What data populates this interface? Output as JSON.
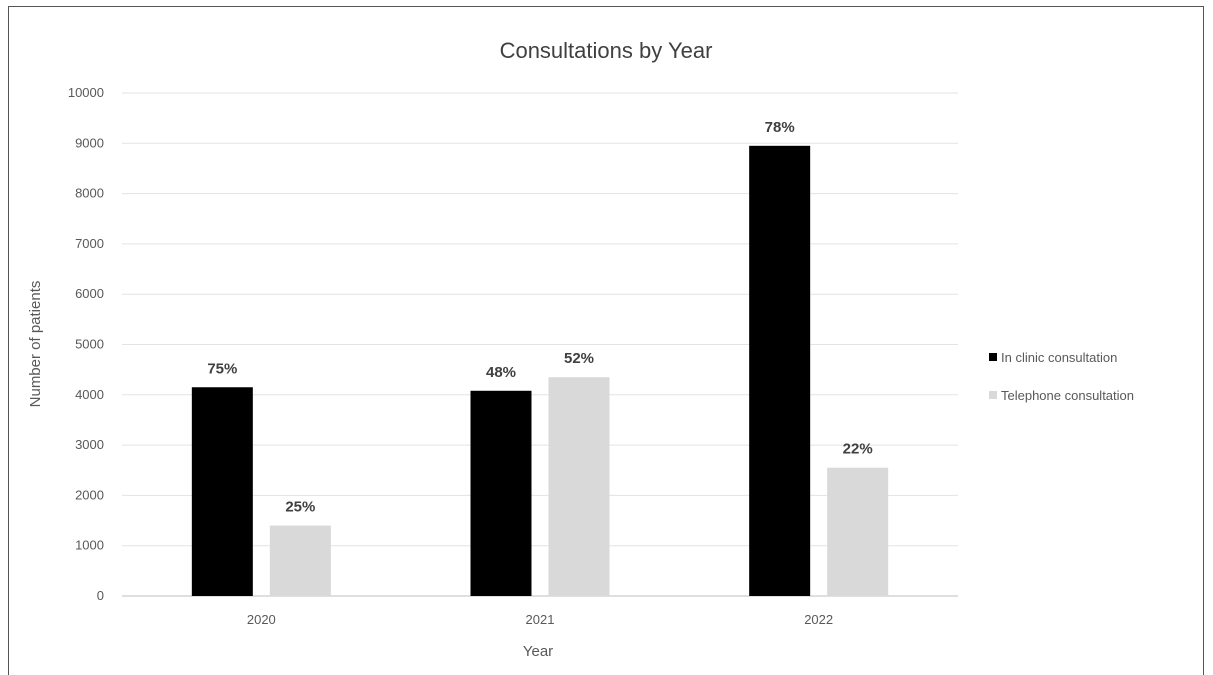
{
  "chart_data": {
    "type": "bar",
    "title": "Consultations by Year",
    "xlabel": "Year",
    "ylabel": "Number of patients",
    "categories": [
      "2020",
      "2021",
      "2022"
    ],
    "ylim": [
      0,
      10000
    ],
    "yticks": [
      0,
      1000,
      2000,
      3000,
      4000,
      5000,
      6000,
      7000,
      8000,
      9000,
      10000
    ],
    "grid": true,
    "legend_position": "right",
    "series": [
      {
        "name": "In clinic consultation",
        "color": "#000000",
        "values": [
          4150,
          4080,
          8950
        ],
        "data_labels": [
          "75%",
          "48%",
          "78%"
        ]
      },
      {
        "name": "Telephone consultation",
        "color": "#d9d9d9",
        "values": [
          1400,
          4350,
          2550
        ],
        "data_labels": [
          "25%",
          "52%",
          "22%"
        ]
      }
    ]
  }
}
